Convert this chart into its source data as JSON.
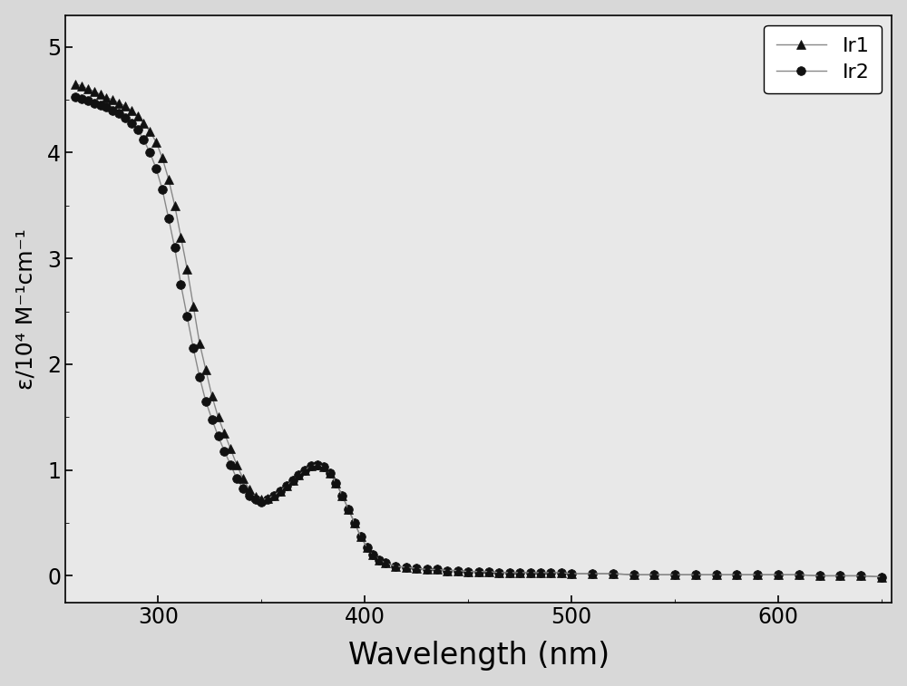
{
  "title": "",
  "xlabel": "Wavelength (nm)",
  "ylabel": "ε/10⁴ M⁻¹cm⁻¹",
  "xlim": [
    255,
    655
  ],
  "ylim": [
    -0.25,
    5.3
  ],
  "yticks": [
    0,
    1,
    2,
    3,
    4,
    5
  ],
  "xticks": [
    300,
    400,
    500,
    600
  ],
  "background_color": "#d8d8d8",
  "plot_bg_color": "#e8e8e8",
  "line_color": "#888888",
  "marker_color": "#111111",
  "Ir1_x": [
    260,
    263,
    266,
    269,
    272,
    275,
    278,
    281,
    284,
    287,
    290,
    293,
    296,
    299,
    302,
    305,
    308,
    311,
    314,
    317,
    320,
    323,
    326,
    329,
    332,
    335,
    338,
    341,
    344,
    347,
    350,
    353,
    356,
    359,
    362,
    365,
    368,
    371,
    374,
    377,
    380,
    383,
    386,
    389,
    392,
    395,
    398,
    401,
    404,
    407,
    410,
    415,
    420,
    425,
    430,
    435,
    440,
    445,
    450,
    455,
    460,
    465,
    470,
    475,
    480,
    485,
    490,
    495,
    500,
    510,
    520,
    530,
    540,
    550,
    560,
    570,
    580,
    590,
    600,
    610,
    620,
    630,
    640,
    650
  ],
  "Ir1_y": [
    4.65,
    4.63,
    4.6,
    4.58,
    4.55,
    4.52,
    4.5,
    4.47,
    4.44,
    4.4,
    4.35,
    4.28,
    4.2,
    4.1,
    3.95,
    3.75,
    3.5,
    3.2,
    2.9,
    2.55,
    2.2,
    1.95,
    1.7,
    1.5,
    1.35,
    1.2,
    1.05,
    0.92,
    0.82,
    0.75,
    0.72,
    0.73,
    0.76,
    0.8,
    0.85,
    0.9,
    0.95,
    1.0,
    1.04,
    1.05,
    1.03,
    0.97,
    0.88,
    0.76,
    0.63,
    0.5,
    0.37,
    0.27,
    0.2,
    0.15,
    0.12,
    0.09,
    0.08,
    0.07,
    0.06,
    0.06,
    0.05,
    0.05,
    0.04,
    0.04,
    0.04,
    0.03,
    0.03,
    0.03,
    0.03,
    0.03,
    0.03,
    0.03,
    0.02,
    0.02,
    0.02,
    0.01,
    0.01,
    0.01,
    0.01,
    0.01,
    0.01,
    0.01,
    0.01,
    0.01,
    0.0,
    0.0,
    0.0,
    -0.01
  ],
  "Ir2_x": [
    260,
    263,
    266,
    269,
    272,
    275,
    278,
    281,
    284,
    287,
    290,
    293,
    296,
    299,
    302,
    305,
    308,
    311,
    314,
    317,
    320,
    323,
    326,
    329,
    332,
    335,
    338,
    341,
    344,
    347,
    350,
    353,
    356,
    359,
    362,
    365,
    368,
    371,
    374,
    377,
    380,
    383,
    386,
    389,
    392,
    395,
    398,
    401,
    404,
    407,
    410,
    415,
    420,
    425,
    430,
    435,
    440,
    445,
    450,
    455,
    460,
    465,
    470,
    475,
    480,
    485,
    490,
    495,
    500,
    510,
    520,
    530,
    540,
    550,
    560,
    570,
    580,
    590,
    600,
    610,
    620,
    630,
    640,
    650
  ],
  "Ir2_y": [
    4.53,
    4.51,
    4.49,
    4.47,
    4.45,
    4.43,
    4.4,
    4.37,
    4.33,
    4.28,
    4.22,
    4.12,
    4.0,
    3.85,
    3.65,
    3.38,
    3.1,
    2.75,
    2.45,
    2.15,
    1.88,
    1.65,
    1.48,
    1.32,
    1.18,
    1.05,
    0.92,
    0.83,
    0.76,
    0.72,
    0.7,
    0.72,
    0.76,
    0.8,
    0.85,
    0.9,
    0.95,
    1.0,
    1.04,
    1.05,
    1.03,
    0.97,
    0.88,
    0.76,
    0.63,
    0.5,
    0.37,
    0.27,
    0.2,
    0.15,
    0.12,
    0.09,
    0.08,
    0.07,
    0.06,
    0.06,
    0.05,
    0.05,
    0.04,
    0.04,
    0.04,
    0.03,
    0.03,
    0.03,
    0.03,
    0.03,
    0.03,
    0.03,
    0.02,
    0.02,
    0.02,
    0.01,
    0.01,
    0.01,
    0.01,
    0.01,
    0.01,
    0.01,
    0.01,
    0.01,
    0.0,
    0.0,
    0.0,
    -0.01
  ],
  "legend_labels": [
    "Ir1",
    "Ir2"
  ],
  "xlabel_fontsize": 24,
  "ylabel_fontsize": 18,
  "tick_fontsize": 17,
  "legend_fontsize": 16
}
